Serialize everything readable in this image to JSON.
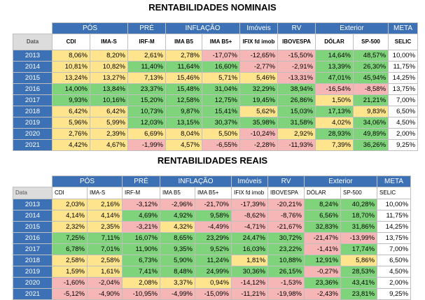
{
  "title_nominal": "RENTABILIDADES NOMINAIS",
  "title_real": "RENTABILIDADES REAIS",
  "groups": [
    {
      "label": "PÓS",
      "span": 2
    },
    {
      "label": "PRÉ",
      "span": 1
    },
    {
      "label": "INFLAÇÃO",
      "span": 2
    },
    {
      "label": "Imóveis",
      "span": 1
    },
    {
      "label": "RV",
      "span": 1
    },
    {
      "label": "Exterior",
      "span": 2
    },
    {
      "label": "META",
      "span": 1
    }
  ],
  "headers": [
    "Data",
    "CDI",
    "IMA-S",
    "IRF-M",
    "IMA B5",
    "IMA B5+",
    "IFIX fd imob",
    "IBOVESPA",
    "DÓLAR",
    "SP-500",
    "SELIC"
  ],
  "nominal": [
    {
      "year": "2013",
      "values": [
        "8,06%",
        "8,20%",
        "2,61%",
        "2,78%",
        "-17,07%",
        "-12,65%",
        "-15,50%",
        "14,64%",
        "48,57%"
      ],
      "colors": [
        "yellow",
        "yellow",
        "yellow",
        "yellow",
        "red",
        "red",
        "red",
        "green",
        "green"
      ],
      "meta": "10,00%"
    },
    {
      "year": "2014",
      "values": [
        "10,81%",
        "10,82%",
        "11,40%",
        "11,64%",
        "16,60%",
        "-2,77%",
        "-2,91%",
        "13,39%",
        "26,30%"
      ],
      "colors": [
        "yellow",
        "yellow",
        "green",
        "green",
        "green",
        "red",
        "red",
        "green",
        "green"
      ],
      "meta": "11,75%"
    },
    {
      "year": "2015",
      "values": [
        "13,24%",
        "13,27%",
        "7,13%",
        "15,46%",
        "5,71%",
        "5,46%",
        "-13,31%",
        "47,01%",
        "45,94%"
      ],
      "colors": [
        "yellow",
        "yellow",
        "yellow",
        "yellow",
        "yellow",
        "yellow",
        "red",
        "green",
        "green"
      ],
      "meta": "14,25%"
    },
    {
      "year": "2016",
      "values": [
        "14,00%",
        "13,84%",
        "23,37%",
        "15,48%",
        "31,04%",
        "32,29%",
        "38,94%",
        "-16,54%",
        "-8,58%"
      ],
      "colors": [
        "green",
        "green",
        "green",
        "green",
        "green",
        "green",
        "green",
        "red",
        "red"
      ],
      "meta": "13,75%"
    },
    {
      "year": "2017",
      "values": [
        "9,93%",
        "10,16%",
        "15,20%",
        "12,58%",
        "12,75%",
        "19,45%",
        "26,86%",
        "1,50%",
        "21,21%"
      ],
      "colors": [
        "green",
        "green",
        "green",
        "green",
        "green",
        "green",
        "green",
        "yellow",
        "green"
      ],
      "meta": "7,00%"
    },
    {
      "year": "2018",
      "values": [
        "6,42%",
        "6,42%",
        "10,73%",
        "9,87%",
        "15,41%",
        "5,62%",
        "15,03%",
        "17,13%",
        "9,83%"
      ],
      "colors": [
        "yellow",
        "yellow",
        "green",
        "green",
        "green",
        "yellow",
        "green",
        "green",
        "yellow"
      ],
      "meta": "6,50%"
    },
    {
      "year": "2019",
      "values": [
        "5,96%",
        "5,99%",
        "12,03%",
        "13,15%",
        "30,37%",
        "35,98%",
        "31,58%",
        "4,02%",
        "34,06%"
      ],
      "colors": [
        "yellow",
        "yellow",
        "green",
        "green",
        "green",
        "green",
        "green",
        "yellow",
        "green"
      ],
      "meta": "4,50%"
    },
    {
      "year": "2020",
      "values": [
        "2,76%",
        "2,39%",
        "6,69%",
        "8,04%",
        "5,50%",
        "-10,24%",
        "2,92%",
        "28,93%",
        "49,89%"
      ],
      "colors": [
        "yellow",
        "yellow",
        "yellow",
        "yellow",
        "yellow",
        "red",
        "yellow",
        "green",
        "green"
      ],
      "meta": "2,00%"
    },
    {
      "year": "2021",
      "values": [
        "4,42%",
        "4,67%",
        "-1,99%",
        "4,57%",
        "-6,55%",
        "-2,28%",
        "-11,93%",
        "7,39%",
        "36,26%"
      ],
      "colors": [
        "yellow",
        "yellow",
        "red",
        "yellow",
        "red",
        "red",
        "red",
        "yellow",
        "green"
      ],
      "meta": "9,25%"
    }
  ],
  "real": [
    {
      "year": "2013",
      "values": [
        "2,03%",
        "2,16%",
        "-3,12%",
        "-2,96%",
        "-21,70%",
        "-17,39%",
        "-20,21%",
        "8,24%",
        "40,28%"
      ],
      "colors": [
        "yellow",
        "yellow",
        "red",
        "red",
        "red",
        "red",
        "red",
        "green",
        "green"
      ],
      "meta": "10,00%"
    },
    {
      "year": "2014",
      "values": [
        "4,14%",
        "4,14%",
        "4,69%",
        "4,92%",
        "9,58%",
        "-8,62%",
        "-8,76%",
        "6,56%",
        "18,70%"
      ],
      "colors": [
        "yellow",
        "yellow",
        "green",
        "green",
        "green",
        "red",
        "red",
        "green",
        "green"
      ],
      "meta": "11,75%"
    },
    {
      "year": "2015",
      "values": [
        "2,32%",
        "2,35%",
        "-3,21%",
        "4,32%",
        "-4,49%",
        "-4,71%",
        "-21,67%",
        "32,83%",
        "31,86%"
      ],
      "colors": [
        "yellow",
        "yellow",
        "red",
        "yellow",
        "red",
        "red",
        "red",
        "green",
        "green"
      ],
      "meta": "14,25%"
    },
    {
      "year": "2016",
      "values": [
        "7,25%",
        "7,11%",
        "16,07%",
        "8,65%",
        "23,29%",
        "24,47%",
        "30,72%",
        "-21,47%",
        "-13,99%"
      ],
      "colors": [
        "green",
        "green",
        "green",
        "green",
        "green",
        "green",
        "green",
        "red",
        "red"
      ],
      "meta": "13,75%"
    },
    {
      "year": "2017",
      "values": [
        "6,78%",
        "7,01%",
        "11,90%",
        "9,35%",
        "9,52%",
        "16,03%",
        "23,22%",
        "-1,41%",
        "17,74%"
      ],
      "colors": [
        "green",
        "green",
        "green",
        "green",
        "green",
        "green",
        "green",
        "red",
        "green"
      ],
      "meta": "7,00%"
    },
    {
      "year": "2018",
      "values": [
        "2,58%",
        "2,58%",
        "6,73%",
        "5,90%",
        "11,24%",
        "1,81%",
        "10,88%",
        "12,91%",
        "5,86%"
      ],
      "colors": [
        "yellow",
        "yellow",
        "green",
        "green",
        "green",
        "yellow",
        "green",
        "green",
        "yellow"
      ],
      "meta": "6,50%"
    },
    {
      "year": "2019",
      "values": [
        "1,59%",
        "1,61%",
        "7,41%",
        "8,48%",
        "24,99%",
        "30,36%",
        "26,15%",
        "-0,27%",
        "28,53%"
      ],
      "colors": [
        "yellow",
        "yellow",
        "green",
        "green",
        "green",
        "green",
        "green",
        "red",
        "green"
      ],
      "meta": "4,50%"
    },
    {
      "year": "2020",
      "values": [
        "-1,60%",
        "-2,04%",
        "2,08%",
        "3,37%",
        "0,94%",
        "-14,12%",
        "-1,53%",
        "23,36%",
        "43,41%"
      ],
      "colors": [
        "red",
        "red",
        "yellow",
        "yellow",
        "yellow",
        "red",
        "red",
        "green",
        "green"
      ],
      "meta": "2,00%"
    },
    {
      "year": "2021",
      "values": [
        "-5,12%",
        "-4,90%",
        "-10,95%",
        "-4,99%",
        "-15,09%",
        "-11,21%",
        "-19,98%",
        "-2,43%",
        "23,81%"
      ],
      "colors": [
        "red",
        "red",
        "red",
        "red",
        "red",
        "red",
        "red",
        "red",
        "green"
      ],
      "meta": "9,25%"
    }
  ]
}
